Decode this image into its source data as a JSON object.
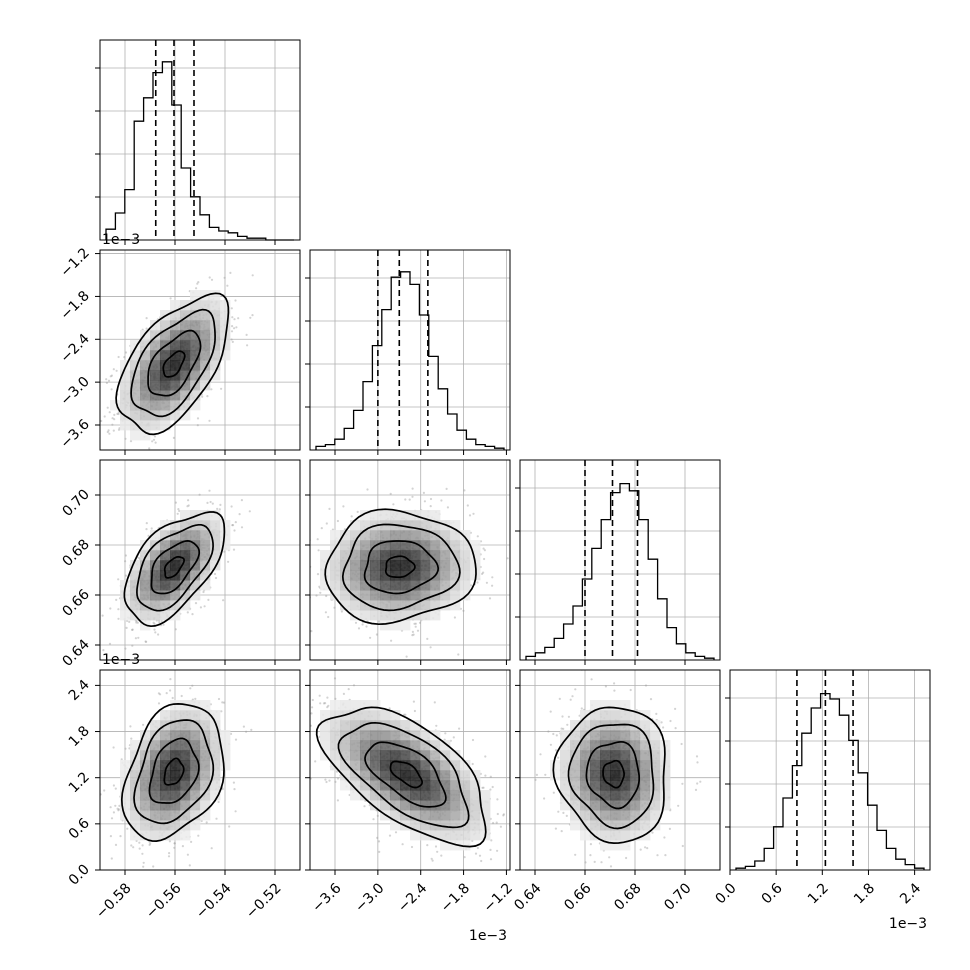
{
  "chart_data": {
    "type": "corner",
    "params": [
      {
        "index": 0,
        "xlim": [
          -0.59,
          -0.51
        ],
        "xticks": [
          -0.58,
          -0.56,
          -0.54,
          -0.52
        ],
        "xtick_labels": [
          "−0.58",
          "−0.56",
          "−0.54",
          "−0.52"
        ],
        "quantiles": [
          -0.5677,
          -0.5604,
          -0.5524
        ],
        "hist": [
          0.06,
          0.15,
          0.28,
          0.66,
          0.79,
          0.93,
          0.99,
          0.75,
          0.4,
          0.24,
          0.14,
          0.07,
          0.05,
          0.04,
          0.02,
          0.01,
          0.01,
          0.0,
          0.0,
          0.0
        ]
      },
      {
        "index": 1,
        "lim": [
          -3.95,
          -1.15
        ],
        "ticks": [
          -3.6,
          -3.0,
          -2.4,
          -1.8,
          -1.2
        ],
        "tick_labels": [
          "−3.6",
          "−3.0",
          "−2.4",
          "−1.8",
          "−1.2"
        ],
        "quantiles": [
          -3.0,
          -2.7,
          -2.3
        ],
        "hist": [
          0.02,
          0.03,
          0.06,
          0.12,
          0.22,
          0.38,
          0.58,
          0.78,
          0.96,
          0.99,
          0.92,
          0.75,
          0.52,
          0.34,
          0.2,
          0.11,
          0.06,
          0.03,
          0.02,
          0.01
        ]
      },
      {
        "index": 2,
        "lim": [
          0.634,
          0.714
        ],
        "ticks": [
          0.64,
          0.66,
          0.68,
          0.7
        ],
        "tick_labels": [
          "0.64",
          "0.66",
          "0.68",
          "0.70"
        ],
        "quantiles": [
          0.66,
          0.671,
          0.681
        ],
        "hist": [
          0.02,
          0.04,
          0.07,
          0.12,
          0.2,
          0.3,
          0.45,
          0.62,
          0.78,
          0.93,
          0.98,
          0.94,
          0.78,
          0.56,
          0.34,
          0.18,
          0.09,
          0.04,
          0.02,
          0.01
        ]
      },
      {
        "index": 3,
        "lim": [
          0.0,
          2.6
        ],
        "ticks": [
          0.0,
          0.6,
          1.2,
          1.8,
          2.4
        ],
        "tick_labels": [
          "0.0",
          "0.6",
          "1.2",
          "1.8",
          "2.4"
        ],
        "quantiles": [
          0.87,
          1.24,
          1.6
        ],
        "hist": [
          0.01,
          0.02,
          0.05,
          0.12,
          0.24,
          0.4,
          0.58,
          0.76,
          0.9,
          0.98,
          0.95,
          0.86,
          0.72,
          0.54,
          0.36,
          0.22,
          0.12,
          0.06,
          0.03,
          0.01
        ]
      }
    ],
    "pairs": [
      {
        "x": 0,
        "y": 1,
        "mean": [
          -0.5605,
          -2.75
        ],
        "std": [
          0.0105,
          0.45
        ],
        "corr": 0.55,
        "contours": [
          0.4,
          1.0,
          1.6,
          2.1
        ]
      },
      {
        "x": 0,
        "y": 2,
        "mean": [
          -0.5605,
          0.6712
        ],
        "std": [
          0.0095,
          0.0105
        ],
        "corr": 0.55,
        "contours": [
          0.4,
          1.0,
          1.6,
          2.1
        ]
      },
      {
        "x": 1,
        "y": 2,
        "mean": [
          -2.7,
          0.6712
        ],
        "std": [
          0.5,
          0.0105
        ],
        "corr": 0.05,
        "contours": [
          0.4,
          1.0,
          1.6,
          2.1
        ]
      },
      {
        "x": 0,
        "y": 3,
        "mean": [
          -0.5605,
          1.27
        ],
        "std": [
          0.0095,
          0.42
        ],
        "corr": 0.3,
        "contours": [
          0.4,
          1.0,
          1.6,
          2.1
        ]
      },
      {
        "x": 1,
        "y": 3,
        "mean": [
          -2.6,
          1.25
        ],
        "std": [
          0.55,
          0.42
        ],
        "corr": -0.6,
        "contours": [
          0.4,
          1.0,
          1.6,
          2.1
        ]
      },
      {
        "x": 2,
        "y": 3,
        "mean": [
          0.6715,
          1.25
        ],
        "std": [
          0.0105,
          0.42
        ],
        "corr": -0.05,
        "contours": [
          0.4,
          1.0,
          1.6,
          2.1
        ]
      }
    ],
    "offset_texts": [
      {
        "name": "offset-row1",
        "label": "1e−3"
      },
      {
        "name": "offset-row3",
        "label": "1e−3"
      },
      {
        "name": "offset-bottom-col1",
        "label": "1e−3"
      },
      {
        "name": "offset-bottom-col3",
        "label": "1e−3"
      }
    ],
    "grid": true,
    "colors": {
      "line": "#000000",
      "scatter": "#9e9e9e",
      "grid": "#b0b0b0",
      "density_max": "#000000"
    }
  }
}
